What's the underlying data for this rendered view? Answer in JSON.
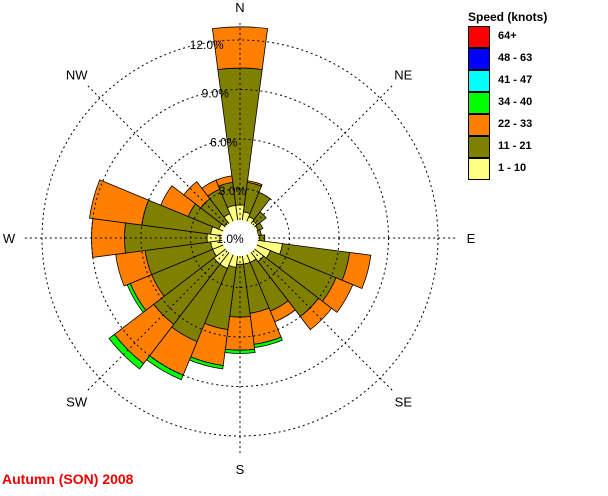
{
  "chart_data": {
    "type": "windrose",
    "title": "Autumn (SON) 2008",
    "rings": [
      3,
      6,
      9,
      12
    ],
    "ring_labels": [
      "3.0%",
      "6.0%",
      "9.0%",
      "12.0%"
    ],
    "calm_label": "1.0%",
    "directions": [
      "N",
      "NE",
      "E",
      "SE",
      "S",
      "SW",
      "W",
      "NW"
    ],
    "legend_title": "Speed (knots)",
    "speed_classes": [
      {
        "label": "1 - 10",
        "color": "#ffff80"
      },
      {
        "label": "11 - 21",
        "color": "#808000"
      },
      {
        "label": "22 - 33",
        "color": "#ff8000"
      },
      {
        "label": "34 - 40",
        "color": "#00ff00"
      },
      {
        "label": "41 - 47",
        "color": "#00ffff"
      },
      {
        "label": "48 - 63",
        "color": "#0000ff"
      },
      {
        "label": "64+",
        "color": "#ff0000"
      }
    ],
    "sectors": [
      {
        "dir": 0,
        "cum": [
          2.0,
          10.3,
          12.8,
          12.8
        ]
      },
      {
        "dir": 15,
        "cum": [
          1.6,
          3.4,
          3.5,
          3.5
        ]
      },
      {
        "dir": 30,
        "cum": [
          1.4,
          3.0,
          3.0,
          3.0
        ]
      },
      {
        "dir": 45,
        "cum": [
          1.3,
          2.0,
          2.0,
          2.0
        ]
      },
      {
        "dir": 60,
        "cum": [
          1.2,
          1.5,
          1.5,
          1.5
        ]
      },
      {
        "dir": 75,
        "cum": [
          1.1,
          1.3,
          1.3,
          1.3
        ]
      },
      {
        "dir": 90,
        "cum": [
          1.2,
          1.5,
          1.5,
          1.5
        ]
      },
      {
        "dir": 105,
        "cum": [
          2.6,
          6.7,
          8.0,
          8.0
        ]
      },
      {
        "dir": 120,
        "cum": [
          2.0,
          6.3,
          7.4,
          7.4
        ]
      },
      {
        "dir": 135,
        "cum": [
          1.8,
          6.0,
          7.0,
          7.0
        ]
      },
      {
        "dir": 150,
        "cum": [
          1.6,
          4.8,
          5.5,
          5.5
        ]
      },
      {
        "dir": 165,
        "cum": [
          1.6,
          4.6,
          6.5,
          6.7
        ]
      },
      {
        "dir": 180,
        "cum": [
          1.6,
          4.8,
          6.8,
          7.0
        ]
      },
      {
        "dir": 195,
        "cum": [
          1.8,
          5.6,
          7.8,
          8.0
        ]
      },
      {
        "dir": 210,
        "cum": [
          2.0,
          6.8,
          9.0,
          9.3
        ]
      },
      {
        "dir": 225,
        "cum": [
          2.0,
          6.6,
          9.6,
          10.0
        ]
      },
      {
        "dir": 240,
        "cum": [
          1.8,
          5.8,
          7.2,
          7.4
        ]
      },
      {
        "dir": 255,
        "cum": [
          1.8,
          5.8,
          7.6,
          7.6
        ]
      },
      {
        "dir": 270,
        "cum": [
          2.0,
          7.0,
          9.0,
          9.0
        ]
      },
      {
        "dir": 285,
        "cum": [
          1.8,
          6.0,
          9.2,
          9.2
        ]
      },
      {
        "dir": 300,
        "cum": [
          1.4,
          3.4,
          5.2,
          5.2
        ]
      },
      {
        "dir": 315,
        "cum": [
          1.2,
          3.0,
          4.3,
          4.3
        ]
      },
      {
        "dir": 330,
        "cum": [
          1.6,
          3.2,
          3.8,
          3.8
        ]
      },
      {
        "dir": 345,
        "cum": [
          2.0,
          3.4,
          3.8,
          3.8
        ]
      }
    ]
  }
}
